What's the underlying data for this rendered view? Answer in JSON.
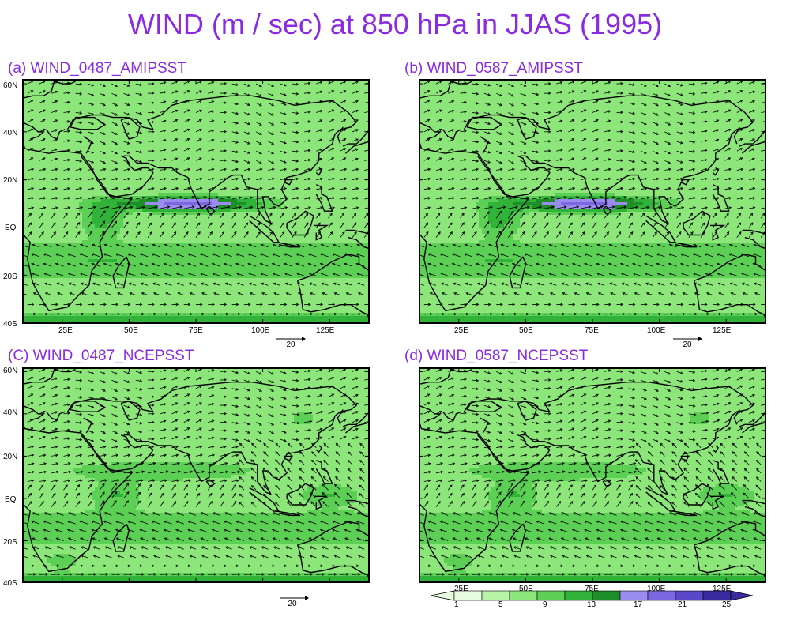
{
  "title": "WIND (m / sec) at 850 hPa in JJAS (1995)",
  "lat_labels": [
    "60N",
    "40N",
    "20N",
    "EQ",
    "20S",
    "40S"
  ],
  "lon_labels": [
    "25E",
    "50E",
    "75E",
    "100E",
    "125E"
  ],
  "reference_vector": "20",
  "panels": [
    {
      "label": "(a)  WIND_0487_AMIPSST",
      "type": "amip"
    },
    {
      "label": "(b)  WIND_0587_AMIPSST",
      "type": "amip"
    },
    {
      "label": "(C)  WIND_0487_NCEPSST",
      "type": "ncep"
    },
    {
      "label": "(d)  WIND_0587_NCEPSST",
      "type": "ncep"
    }
  ],
  "colorbar": {
    "labels": [
      "1",
      "5",
      "9",
      "13",
      "17",
      "21",
      "25"
    ],
    "colors": [
      "#e8fce0",
      "#b8f4a8",
      "#8ce67a",
      "#5ccf55",
      "#30b338",
      "#1d8e28",
      "#9a8cf0",
      "#7b68e0",
      "#5a47c8",
      "#3a2aa0"
    ]
  }
}
